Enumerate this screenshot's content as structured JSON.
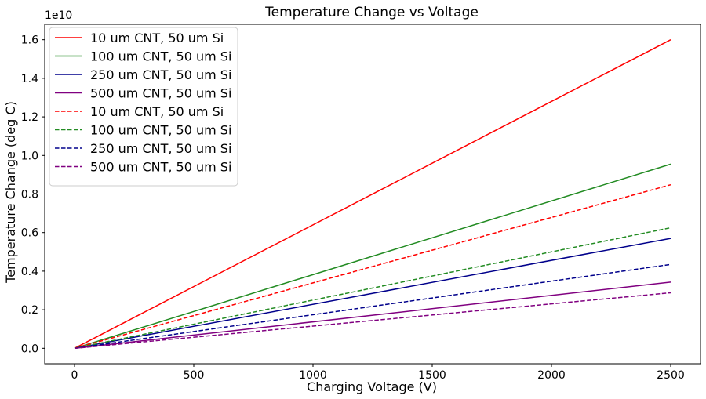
{
  "chart_data": {
    "type": "line",
    "title": "Temperature Change vs Voltage",
    "xlabel": "Charging Voltage (V)",
    "ylabel": "Temperature Change (deg C)",
    "y_offset_text": "1e10",
    "xlim": [
      -125,
      2625
    ],
    "ylim": [
      -0.08,
      1.68
    ],
    "y_scale_multiplier": 10000000000.0,
    "x_ticks": [
      0,
      500,
      1000,
      1500,
      2000,
      2500
    ],
    "x_tick_labels": [
      "0",
      "500",
      "1000",
      "1500",
      "2000",
      "2500"
    ],
    "y_ticks": [
      0.0,
      0.2,
      0.4,
      0.6,
      0.8,
      1.0,
      1.2,
      1.4,
      1.6
    ],
    "y_tick_labels": [
      "0.0",
      "0.2",
      "0.4",
      "0.6",
      "0.8",
      "1.0",
      "1.2",
      "1.4",
      "1.6"
    ],
    "grid": false,
    "legend_position": "upper-left",
    "x": [
      0,
      2500
    ],
    "series": [
      {
        "name": "10 um CNT, 50 um Si",
        "values": [
          0.0,
          1.6
        ],
        "color": "#ff0000",
        "dash": "solid"
      },
      {
        "name": "100 um CNT, 50 um Si",
        "values": [
          0.0,
          0.955
        ],
        "color": "#228b22",
        "dash": "solid"
      },
      {
        "name": "250 um CNT, 50 um Si",
        "values": [
          0.0,
          0.57
        ],
        "color": "#00008b",
        "dash": "solid"
      },
      {
        "name": "500 um CNT, 50 um Si",
        "values": [
          0.0,
          0.343
        ],
        "color": "#800080",
        "dash": "solid"
      },
      {
        "name": "10 um CNT, 50 um Si",
        "values": [
          0.0,
          0.848
        ],
        "color": "#ff0000",
        "dash": "dashed"
      },
      {
        "name": "100 um CNT, 50 um Si",
        "values": [
          0.0,
          0.625
        ],
        "color": "#228b22",
        "dash": "dashed"
      },
      {
        "name": "250 um CNT, 50 um Si",
        "values": [
          0.0,
          0.435
        ],
        "color": "#00008b",
        "dash": "dashed"
      },
      {
        "name": "500 um CNT, 50 um Si",
        "values": [
          0.0,
          0.288
        ],
        "color": "#800080",
        "dash": "dashed"
      }
    ]
  }
}
